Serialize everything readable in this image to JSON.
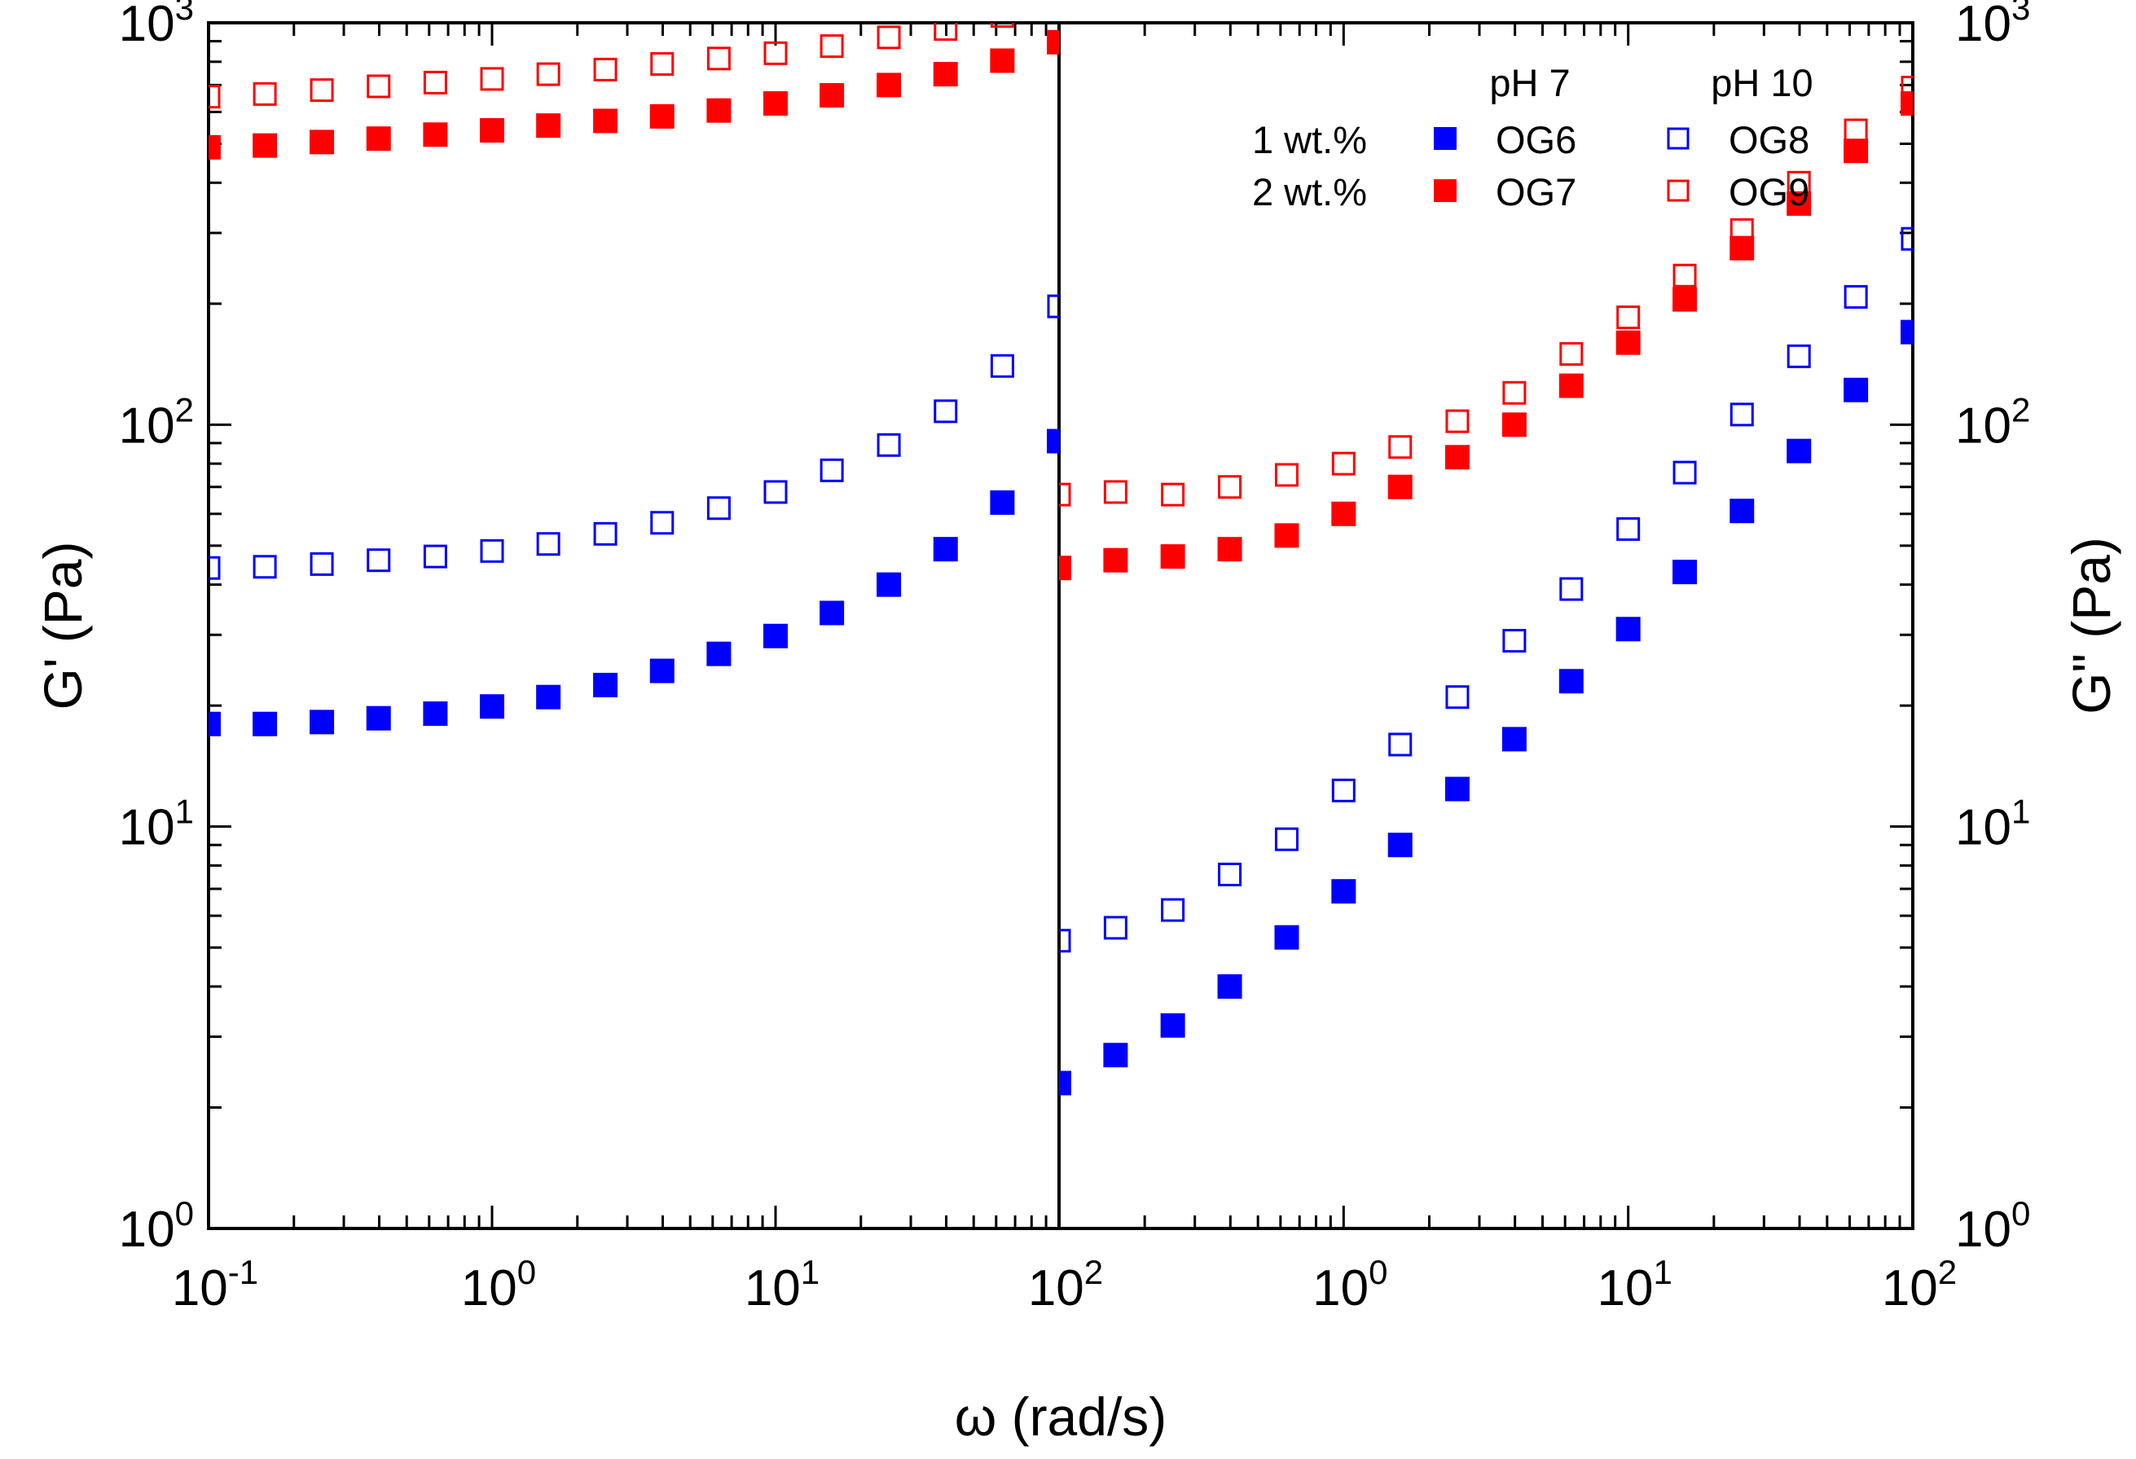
{
  "chart_data": {
    "type": "scatter",
    "x_label": "ω (rad/s)",
    "x_scale": "log",
    "x_range": [
      0.1,
      100
    ],
    "x_ticks": [
      {
        "base": "10",
        "exp": "-1"
      },
      {
        "base": "10",
        "exp": "0"
      },
      {
        "base": "10",
        "exp": "1"
      },
      {
        "base": "10",
        "exp": "2"
      }
    ],
    "y_scale": "log",
    "y_range": [
      1,
      1000
    ],
    "y_ticks": [
      {
        "base": "10",
        "exp": "0"
      },
      {
        "base": "10",
        "exp": "1"
      },
      {
        "base": "10",
        "exp": "2"
      },
      {
        "base": "10",
        "exp": "3"
      }
    ],
    "panels": [
      {
        "y_label": "G' (Pa)",
        "y_label_side": "left",
        "series": [
          {
            "name": "OG6",
            "color": "#0000ff",
            "marker": "filled-square",
            "x": [
              0.1,
              0.158,
              0.251,
              0.398,
              0.631,
              1,
              1.58,
              2.51,
              3.98,
              6.31,
              10,
              15.8,
              25.1,
              39.8,
              63.1,
              100
            ],
            "y": [
              18,
              18,
              18.2,
              18.6,
              19.1,
              19.9,
              21,
              22.5,
              24.4,
              26.9,
              29.8,
              34,
              40,
              49,
              64,
              91
            ]
          },
          {
            "name": "OG7",
            "color": "#ff0000",
            "marker": "filled-square",
            "x": [
              0.1,
              0.158,
              0.251,
              0.398,
              0.631,
              1,
              1.58,
              2.51,
              3.98,
              6.31,
              10,
              15.8,
              25.1,
              39.8,
              63.1,
              100
            ],
            "y": [
              490,
              495,
              505,
              515,
              527,
              540,
              555,
              570,
              585,
              605,
              630,
              660,
              700,
              745,
              805,
              895
            ]
          },
          {
            "name": "OG8",
            "color": "#0000ff",
            "marker": "open-square",
            "x": [
              0.1,
              0.158,
              0.251,
              0.398,
              0.631,
              1,
              1.58,
              2.51,
              3.98,
              6.31,
              10,
              15.8,
              25.1,
              39.8,
              63.1,
              100
            ],
            "y": [
              44,
              44.3,
              45,
              46,
              47,
              48.5,
              50.5,
              53.5,
              57,
              62,
              68,
              77,
              89,
              108,
              140,
              197
            ]
          },
          {
            "name": "OG9",
            "color": "#ff0000",
            "marker": "open-square",
            "x": [
              0.1,
              0.158,
              0.251,
              0.398,
              0.631,
              1,
              1.58,
              2.51,
              3.98,
              6.31,
              10,
              15.8,
              25.1,
              39.8,
              63.1,
              100
            ],
            "y": [
              655,
              665,
              680,
              695,
              710,
              725,
              745,
              765,
              790,
              815,
              840,
              875,
              920,
              965,
              1040,
              1150
            ]
          }
        ]
      },
      {
        "y_label": "G\" (Pa)",
        "y_label_side": "right",
        "series": [
          {
            "name": "OG6",
            "color": "#0000ff",
            "marker": "filled-square",
            "x": [
              0.1,
              0.158,
              0.251,
              0.398,
              0.631,
              1,
              1.58,
              2.51,
              3.98,
              6.31,
              10,
              15.8,
              25.1,
              39.8,
              63.1,
              100
            ],
            "y": [
              2.3,
              2.7,
              3.2,
              4.0,
              5.3,
              6.9,
              9.0,
              12.4,
              16.5,
              23,
              31,
              43,
              61,
              86,
              122,
              170
            ]
          },
          {
            "name": "OG7",
            "color": "#ff0000",
            "marker": "filled-square",
            "x": [
              0.1,
              0.158,
              0.251,
              0.398,
              0.631,
              1,
              1.58,
              2.51,
              3.98,
              6.31,
              10,
              15.8,
              25.1,
              39.8,
              63.1,
              100
            ],
            "y": [
              44,
              46,
              47,
              49,
              53,
              60,
              70,
              83,
              100,
              125,
              160,
              205,
              275,
              355,
              480,
              630
            ]
          },
          {
            "name": "OG8",
            "color": "#0000ff",
            "marker": "open-square",
            "x": [
              0.1,
              0.158,
              0.251,
              0.398,
              0.631,
              1,
              1.58,
              2.51,
              3.98,
              6.31,
              10,
              15.8,
              25.1,
              39.8,
              63.1,
              100
            ],
            "y": [
              5.2,
              5.6,
              6.2,
              7.6,
              9.3,
              12.3,
              16,
              21,
              29,
              39,
              55,
              76,
              106,
              148,
              208,
              290
            ]
          },
          {
            "name": "OG9",
            "color": "#ff0000",
            "marker": "open-square",
            "x": [
              0.1,
              0.158,
              0.251,
              0.398,
              0.631,
              1,
              1.58,
              2.51,
              3.98,
              6.31,
              10,
              15.8,
              25.1,
              39.8,
              63.1,
              100
            ],
            "y": [
              67,
              68,
              67,
              70,
              75,
              80,
              88,
              102,
              120,
              150,
              185,
              235,
              305,
              400,
              540,
              690
            ]
          }
        ]
      }
    ],
    "legend": {
      "placement": "top-right",
      "column_headers": [
        "pH 7",
        "pH 10"
      ],
      "row_labels": [
        "1 wt.%",
        "2 wt.%"
      ],
      "entries": [
        {
          "label": "OG6",
          "color": "#0000ff",
          "marker": "filled-square"
        },
        {
          "label": "OG8",
          "color": "#0000ff",
          "marker": "open-square"
        },
        {
          "label": "OG7",
          "color": "#ff0000",
          "marker": "filled-square"
        },
        {
          "label": "OG9",
          "color": "#ff0000",
          "marker": "open-square"
        }
      ]
    },
    "grid": false
  }
}
